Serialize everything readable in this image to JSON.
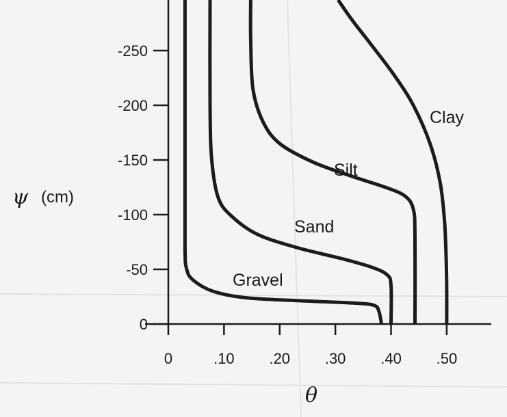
{
  "chart_data": {
    "type": "line",
    "title": "",
    "xlabel": "θ",
    "ylabel": {
      "symbol": "ψ",
      "unit": "(cm)"
    },
    "xlim": [
      0,
      0.58
    ],
    "ylim": [
      0,
      -295
    ],
    "x_ticks": [
      {
        "value": 0,
        "label": "0"
      },
      {
        "value": 0.1,
        "label": ".10"
      },
      {
        "value": 0.2,
        "label": ".20"
      },
      {
        "value": 0.3,
        "label": ".30"
      },
      {
        "value": 0.4,
        "label": ".40"
      },
      {
        "value": 0.5,
        "label": ".50"
      }
    ],
    "y_ticks": [
      {
        "value": 0,
        "label": "0"
      },
      {
        "value": -50,
        "label": "-50"
      },
      {
        "value": -100,
        "label": "-100"
      },
      {
        "value": -150,
        "label": "-150"
      },
      {
        "value": -200,
        "label": "-200"
      },
      {
        "value": -250,
        "label": "-250"
      }
    ],
    "series": [
      {
        "name": "Gravel",
        "label": "Gravel",
        "points": [
          [
            0.03,
            -295
          ],
          [
            0.03,
            -150
          ],
          [
            0.03,
            -70
          ],
          [
            0.033,
            -50
          ],
          [
            0.045,
            -40
          ],
          [
            0.08,
            -30
          ],
          [
            0.14,
            -24
          ],
          [
            0.25,
            -21
          ],
          [
            0.34,
            -19
          ],
          [
            0.37,
            -17
          ],
          [
            0.378,
            -12
          ],
          [
            0.383,
            0
          ]
        ]
      },
      {
        "name": "Sand",
        "label": "Sand",
        "points": [
          [
            0.075,
            -295
          ],
          [
            0.075,
            -200
          ],
          [
            0.078,
            -150
          ],
          [
            0.09,
            -115
          ],
          [
            0.115,
            -98
          ],
          [
            0.16,
            -82
          ],
          [
            0.23,
            -70
          ],
          [
            0.31,
            -60
          ],
          [
            0.365,
            -52
          ],
          [
            0.393,
            -45
          ],
          [
            0.4,
            -35
          ],
          [
            0.4,
            0
          ]
        ]
      },
      {
        "name": "Silt",
        "label": "Silt",
        "points": [
          [
            0.148,
            -295
          ],
          [
            0.148,
            -260
          ],
          [
            0.152,
            -215
          ],
          [
            0.17,
            -185
          ],
          [
            0.2,
            -165
          ],
          [
            0.26,
            -148
          ],
          [
            0.33,
            -135
          ],
          [
            0.39,
            -125
          ],
          [
            0.425,
            -117
          ],
          [
            0.44,
            -105
          ],
          [
            0.443,
            -80
          ],
          [
            0.443,
            0
          ]
        ]
      },
      {
        "name": "Clay",
        "label": "Clay",
        "points": [
          [
            0.305,
            -295
          ],
          [
            0.33,
            -278
          ],
          [
            0.365,
            -255
          ],
          [
            0.405,
            -228
          ],
          [
            0.44,
            -200
          ],
          [
            0.47,
            -165
          ],
          [
            0.488,
            -130
          ],
          [
            0.496,
            -95
          ],
          [
            0.499,
            -60
          ],
          [
            0.5,
            -30
          ],
          [
            0.5,
            0
          ]
        ]
      }
    ]
  }
}
